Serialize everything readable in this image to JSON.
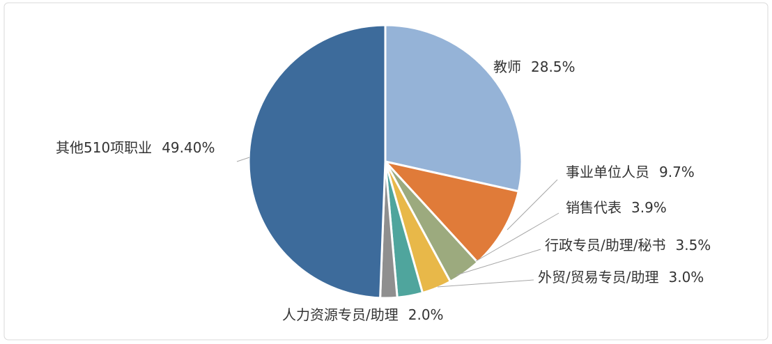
{
  "chart_data": {
    "type": "pie",
    "categories": [
      "教师",
      "事业单位人员",
      "销售代表",
      "行政专员/助理/秘书",
      "外贸/贸易专员/助理",
      "人力资源专员/助理",
      "其他510项职业"
    ],
    "values": [
      28.5,
      9.7,
      3.9,
      3.5,
      3.0,
      2.0,
      49.4
    ],
    "value_labels": [
      "28.5%",
      "9.7%",
      "3.9%",
      "3.5%",
      "3.0%",
      "2.0%",
      "49.40%"
    ],
    "colors": [
      "#95b3d7",
      "#e07b39",
      "#9caa7e",
      "#e8b849",
      "#4fa59d",
      "#8f8f8f",
      "#3d6b9b"
    ]
  }
}
